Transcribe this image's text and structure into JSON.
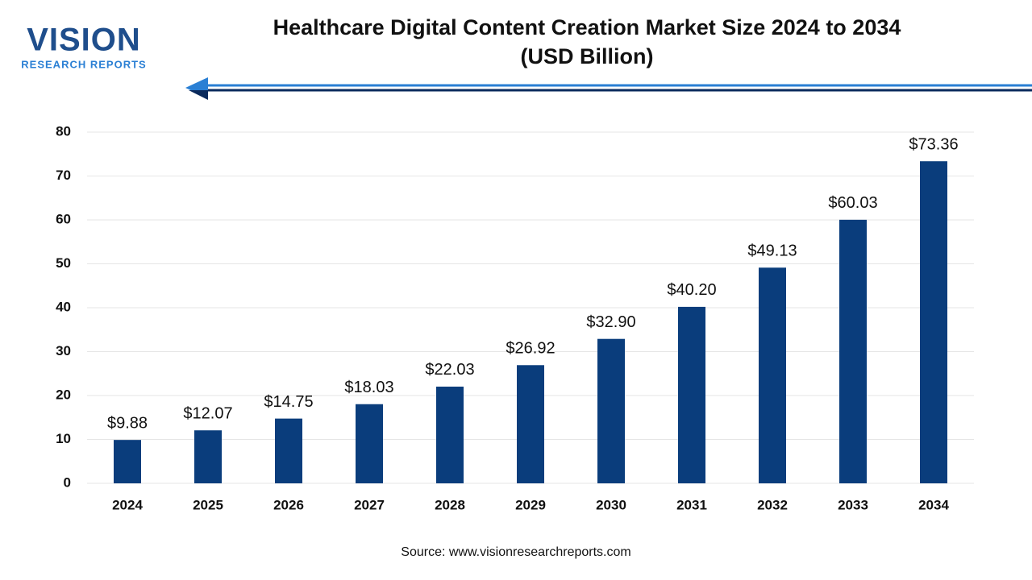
{
  "logo": {
    "name": "VISION",
    "tagline": "RESEARCH REPORTS"
  },
  "chart_data": {
    "type": "bar",
    "title": "Healthcare Digital Content Creation Market Size 2024 to 2034",
    "subtitle": "(USD Billion)",
    "categories": [
      "2024",
      "2025",
      "2026",
      "2027",
      "2028",
      "2029",
      "2030",
      "2031",
      "2032",
      "2033",
      "2034"
    ],
    "values": [
      9.88,
      12.07,
      14.75,
      18.03,
      22.03,
      26.92,
      32.9,
      40.2,
      49.13,
      60.03,
      73.36
    ],
    "value_labels": [
      "$9.88",
      "$12.07",
      "$14.75",
      "$18.03",
      "$22.03",
      "$26.92",
      "$32.90",
      "$40.20",
      "$49.13",
      "$60.03",
      "$73.36"
    ],
    "color": "#0a3d7c",
    "ylim": [
      0,
      80
    ],
    "yticks": [
      0,
      10,
      20,
      30,
      40,
      50,
      60,
      70,
      80
    ],
    "grid": true
  },
  "source": "Source: www.visionresearchreports.com"
}
